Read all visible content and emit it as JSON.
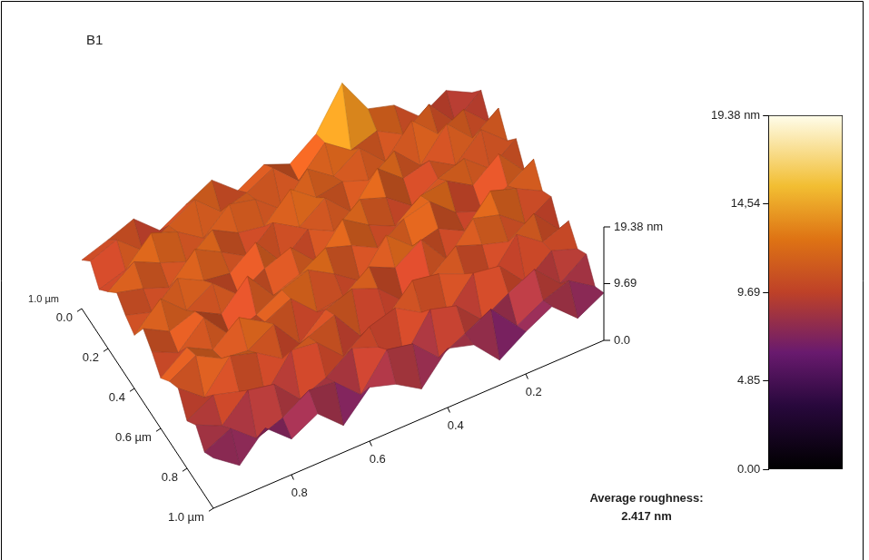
{
  "chart_data": {
    "type": "surface",
    "title": "B1",
    "x": [
      0,
      0.067,
      0.133,
      0.2,
      0.267,
      0.333,
      0.4,
      0.467,
      0.533,
      0.6,
      0.667,
      0.733,
      0.8,
      0.867,
      0.933,
      1
    ],
    "y": [
      0,
      0.067,
      0.133,
      0.2,
      0.267,
      0.333,
      0.4,
      0.467,
      0.533,
      0.6,
      0.667,
      0.733,
      0.8,
      0.867,
      0.933,
      1
    ],
    "z": [
      [
        8.2,
        10.5,
        7.9,
        11.8,
        13.1,
        19.38,
        12.6,
        9.4,
        11.2,
        8.7,
        12.4,
        10.1,
        7.6,
        11.5,
        9.8,
        8.3
      ],
      [
        10.9,
        7.4,
        12.3,
        9.1,
        11.6,
        10.2,
        13.4,
        8.8,
        12.9,
        10.6,
        9.3,
        13.2,
        10.7,
        8.4,
        12.1,
        10.4
      ],
      [
        7.6,
        11.8,
        9.5,
        13.7,
        8.6,
        12.8,
        9.9,
        13.1,
        8.1,
        11.7,
        12.8,
        8.9,
        11.9,
        13.6,
        9.2,
        7.8
      ],
      [
        12.4,
        9.2,
        13.5,
        8.3,
        12.7,
        9.6,
        11.3,
        10.5,
        13.8,
        9.4,
        10.2,
        12.6,
        9.1,
        10.8,
        12.9,
        9.7
      ],
      [
        9.1,
        12.9,
        8.7,
        11.4,
        10.3,
        13.9,
        8.4,
        12.7,
        9.6,
        12.3,
        8.5,
        11.1,
        13.5,
        8.9,
        10.6,
        11.8
      ],
      [
        11.7,
        8.5,
        12.1,
        10.6,
        7.9,
        11.2,
        12.8,
        9.3,
        11.5,
        7.8,
        13.1,
        9.7,
        10.4,
        12.7,
        8.8,
        10.2
      ],
      [
        8.4,
        13.3,
        9.8,
        12.5,
        11.9,
        8.6,
        10.7,
        13.6,
        8.2,
        12.6,
        10.9,
        8.3,
        12.2,
        9.5,
        13.4,
        9.1
      ],
      [
        12.8,
        10.1,
        7.7,
        9.4,
        13.2,
        12.1,
        9.1,
        11.4,
        12.9,
        10.3,
        8.6,
        13.8,
        9.2,
        11.6,
        10.1,
        12.5
      ],
      [
        9.6,
        11.9,
        13.4,
        8.5,
        10.8,
        9.7,
        13.5,
        7.6,
        10.7,
        13.3,
        11.8,
        9.4,
        7.9,
        12.8,
        8.7,
        10.8
      ],
      [
        10.9,
        8.2,
        11.6,
        12.9,
        7.8,
        13.1,
        10.2,
        12.3,
        9.1,
        8.4,
        12.6,
        10.5,
        13.2,
        9.6,
        11.9,
        8.6
      ],
      [
        7.5,
        12.2,
        9.3,
        10.7,
        12.4,
        8.9,
        6.8,
        10.9,
        12.7,
        11.1,
        7.2,
        12.4,
        9.8,
        10.4,
        12.8,
        10.3
      ],
      [
        11.3,
        9.6,
        12.8,
        7.4,
        9.9,
        11.8,
        12.6,
        8.1,
        6.9,
        12.4,
        10.6,
        8.8,
        11.7,
        13.1,
        7.9,
        11.4
      ],
      [
        8.8,
        10.4,
        6.9,
        11.6,
        12.3,
        7.3,
        9.4,
        12.1,
        10.8,
        7.7,
        11.9,
        12.5,
        6.7,
        9.3,
        10.6,
        8.1
      ],
      [
        10.2,
        7.1,
        11.4,
        9.2,
        6.6,
        10.9,
        12.2,
        5.8,
        9.6,
        11.3,
        8.2,
        6.4,
        10.9,
        11.8,
        7.6,
        9.7
      ],
      [
        6.9,
        9.8,
        8.3,
        5.9,
        10.7,
        8.4,
        6.2,
        10.5,
        11.4,
        5.6,
        9.7,
        10.2,
        7.4,
        5.8,
        9.4,
        7.3
      ],
      [
        8.1,
        5.7,
        9.6,
        7.2,
        4.3,
        8.8,
        10.1,
        5.1,
        7.8,
        9.2,
        4.6,
        8.5,
        6.1,
        9.9,
        5.4,
        8.6
      ]
    ],
    "xlim": [
      0,
      1
    ],
    "xticks": [
      {
        "value": 0,
        "label": "0.0"
      },
      0.2,
      0.4,
      {
        "value": 0.6,
        "label": "0.6 µm"
      },
      0.8,
      {
        "value": 1,
        "label": "1.0 µm"
      }
    ],
    "ylim": [
      0,
      1
    ],
    "yticks": [
      0.2,
      0.4,
      0.6,
      0.8
    ],
    "zlim": [
      0,
      19.38
    ],
    "zticks": [
      {
        "value": 0,
        "label": "0.0"
      },
      9.69,
      {
        "value": 19.38,
        "label": "19.38 nm"
      }
    ],
    "colorbar": {
      "range": [
        0,
        19.38
      ],
      "ticks": [
        {
          "value": 0,
          "label": "0.00"
        },
        4.85,
        9.69,
        {
          "value": 14.54,
          "label": "14,54"
        },
        {
          "value": 19.38,
          "label": "19.38 nm"
        }
      ]
    },
    "annotations": [
      {
        "lines": [
          "1.0 µm"
        ]
      },
      {
        "lines": [
          "Average roughness:",
          "2.417 nm"
        ]
      }
    ]
  }
}
